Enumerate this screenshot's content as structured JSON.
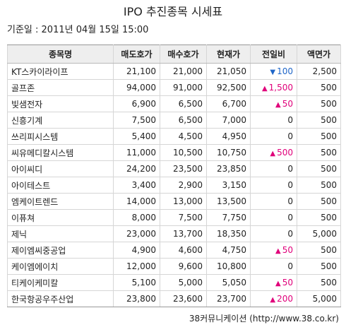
{
  "title": "IPO 추진종목 시세표",
  "base_date": "기준일 : 2011년 04월 15일 15:00",
  "columns": [
    "종목명",
    "매도호가",
    "매수호가",
    "현재가",
    "전일비",
    "액면가"
  ],
  "rows": [
    {
      "name": "KT스카이라이프",
      "ask": "21,100",
      "bid": "21,000",
      "price": "21,050",
      "dir": "down",
      "change": "100",
      "par": "2,500"
    },
    {
      "name": "골프존",
      "ask": "94,000",
      "bid": "91,000",
      "price": "92,500",
      "dir": "up",
      "change": "1,500",
      "par": "500"
    },
    {
      "name": "빛샘전자",
      "ask": "6,900",
      "bid": "6,500",
      "price": "6,700",
      "dir": "up",
      "change": "50",
      "par": "500"
    },
    {
      "name": "신흥기계",
      "ask": "7,500",
      "bid": "6,500",
      "price": "7,000",
      "dir": "none",
      "change": "0",
      "par": "500"
    },
    {
      "name": "쓰리피시스템",
      "ask": "5,400",
      "bid": "4,500",
      "price": "4,950",
      "dir": "none",
      "change": "0",
      "par": "500"
    },
    {
      "name": "씨유메디칼시스템",
      "ask": "11,000",
      "bid": "10,500",
      "price": "10,750",
      "dir": "up",
      "change": "500",
      "par": "500"
    },
    {
      "name": "아이씨디",
      "ask": "24,200",
      "bid": "23,500",
      "price": "23,850",
      "dir": "none",
      "change": "0",
      "par": "500"
    },
    {
      "name": "아이테스트",
      "ask": "3,400",
      "bid": "2,900",
      "price": "3,150",
      "dir": "none",
      "change": "0",
      "par": "500"
    },
    {
      "name": "엠케이트렌드",
      "ask": "14,000",
      "bid": "13,000",
      "price": "13,500",
      "dir": "none",
      "change": "0",
      "par": "500"
    },
    {
      "name": "이퓨쳐",
      "ask": "8,000",
      "bid": "7,500",
      "price": "7,750",
      "dir": "none",
      "change": "0",
      "par": "500"
    },
    {
      "name": "제닉",
      "ask": "23,000",
      "bid": "13,700",
      "price": "18,350",
      "dir": "none",
      "change": "0",
      "par": "5,000"
    },
    {
      "name": "제이엠씨중공업",
      "ask": "4,900",
      "bid": "4,600",
      "price": "4,750",
      "dir": "up",
      "change": "50",
      "par": "500"
    },
    {
      "name": "케이엠에이치",
      "ask": "12,000",
      "bid": "9,600",
      "price": "10,800",
      "dir": "none",
      "change": "0",
      "par": "500"
    },
    {
      "name": "티케이케미칼",
      "ask": "5,100",
      "bid": "5,000",
      "price": "5,050",
      "dir": "up",
      "change": "50",
      "par": "500"
    },
    {
      "name": "한국항공우주산업",
      "ask": "23,800",
      "bid": "23,600",
      "price": "23,700",
      "dir": "up",
      "change": "200",
      "par": "5,000"
    }
  ],
  "source": "38커뮤니케이션 (http://www.38.co.kr)",
  "colors": {
    "up": "#e0007a",
    "down": "#1f66c8",
    "header_bg": "#eeeeee",
    "border": "#d6d6d6"
  },
  "icons": {
    "up": "triangle-up-icon",
    "down": "triangle-down-icon"
  }
}
